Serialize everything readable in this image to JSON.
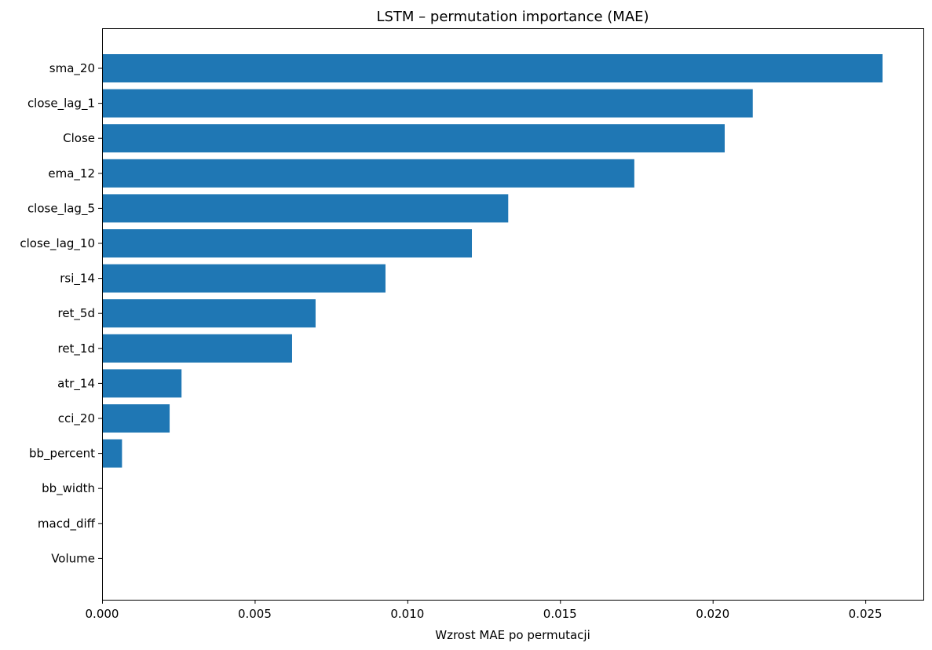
{
  "chart_data": {
    "type": "bar",
    "orientation": "horizontal",
    "title": "LSTM – permutation importance (MAE)",
    "xlabel": "Wzrost MAE po permutacji",
    "ylabel": "",
    "categories": [
      "sma_20",
      "close_lag_1",
      "Close",
      "ema_12",
      "close_lag_5",
      "close_lag_10",
      "rsi_14",
      "ret_5d",
      "ret_1d",
      "atr_14",
      "cci_20",
      "bb_percent",
      "bb_width",
      "macd_diff",
      "Volume"
    ],
    "values": [
      0.02555,
      0.0213,
      0.02038,
      0.01742,
      0.01329,
      0.0121,
      0.00927,
      0.00698,
      0.00621,
      0.00259,
      0.0022,
      0.00064,
      0.0,
      0.0,
      0.0
    ],
    "xlim": [
      0,
      0.0269
    ],
    "xticks": [
      "0.000",
      "0.005",
      "0.010",
      "0.015",
      "0.020",
      "0.025"
    ],
    "grid": false,
    "legend": "none",
    "bar_color": "#1f77b4"
  }
}
